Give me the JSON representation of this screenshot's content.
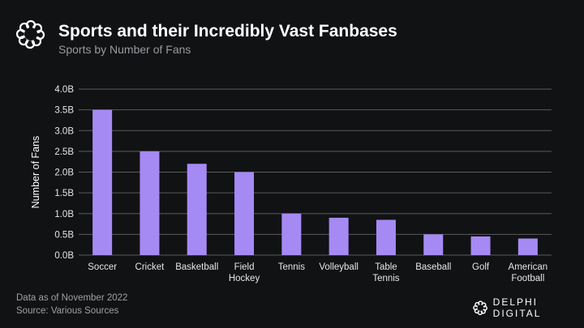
{
  "header": {
    "title": "Sports and their Incredibly Vast Fanbases",
    "subtitle": "Sports by Number of Fans"
  },
  "footer": {
    "note": "Data as of November 2022",
    "source": "Source: Various Sources",
    "brand": "DELPHI DIGITAL"
  },
  "colors": {
    "bar": "#a68af4",
    "background": "#111214",
    "grid": "#5a5a5e"
  },
  "chart_data": {
    "type": "bar",
    "title": "Sports and their Incredibly Vast Fanbases",
    "subtitle": "Sports by Number of Fans",
    "xlabel": "",
    "ylabel": "Number of Fans",
    "categories": [
      [
        "Soccer"
      ],
      [
        "Cricket"
      ],
      [
        "Basketball"
      ],
      [
        "Field",
        "Hockey"
      ],
      [
        "Tennis"
      ],
      [
        "Volleyball"
      ],
      [
        "Table",
        "Tennis"
      ],
      [
        "Baseball"
      ],
      [
        "Golf"
      ],
      [
        "American",
        "Football"
      ]
    ],
    "values": [
      3.5,
      2.5,
      2.2,
      2.0,
      1.0,
      0.9,
      0.85,
      0.5,
      0.45,
      0.4
    ],
    "unit": "billion fans",
    "ylim": [
      0,
      4.0
    ],
    "yticks": [
      "0.0B",
      "0.5B",
      "1.0B",
      "1.5B",
      "2.0B",
      "2.5B",
      "3.0B",
      "3.5B",
      "4.0B"
    ],
    "grid": true,
    "legend": "none"
  }
}
